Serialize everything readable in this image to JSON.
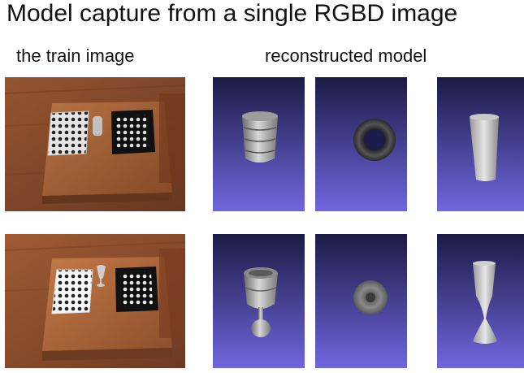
{
  "title": "Model capture from a single RGBD image",
  "left_label": "the train image",
  "right_label": "reconstructed model",
  "colors": {
    "render_top": "#1c1a45",
    "render_bottom": "#6f66dd",
    "floor": "#8a4a2a",
    "table": "#b06a3e"
  },
  "rows": [
    {
      "photo": "train-photo-glass",
      "models": [
        "cup-side-view",
        "cup-top-view",
        "cup-front-view"
      ]
    },
    {
      "photo": "train-photo-wine-glass",
      "models": [
        "wineglass-side-view",
        "wineglass-top-view",
        "wineglass-front-view"
      ]
    }
  ]
}
